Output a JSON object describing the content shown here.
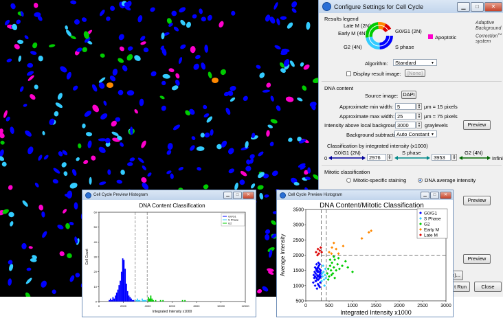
{
  "dialog": {
    "title": "Configure Settings for Cell Cycle",
    "results_legend_label": "Results legend",
    "legend": {
      "late_m": "Late M (2N)",
      "early_m": "Early M (4N)",
      "g0g1": "G0/G1 (2N)",
      "g2": "G2 (4N)",
      "s_phase": "S phase",
      "apoptotic": "Apoptotic"
    },
    "adaptive_text": "Adaptive Background Correction",
    "adaptive_tm": "TM",
    "adaptive_system": "system",
    "algorithm_label": "Algorithm:",
    "algorithm_value": "Standard",
    "display_result_label": "Display result image:",
    "display_result_value": "[None]",
    "dna_content_label": "DNA content",
    "source_image_label": "Source image:",
    "source_image_value": "DAPI",
    "min_width_label": "Approximate min width:",
    "min_width_value": "5",
    "min_width_unit": "μm = 15 pixels",
    "max_width_label": "Approximate max width:",
    "max_width_value": "25",
    "max_width_unit": "μm = 75 pixels",
    "intensity_label": "Intensity above local background:",
    "intensity_value": "3000",
    "intensity_unit": "graylevels",
    "preview_label": "Preview",
    "bg_sub_label": "Background subtraction:",
    "bg_sub_value": "Auto Constant",
    "classification_label": "Classification by integrated intensity (x1000)",
    "class_zero": "0",
    "class_g0g1": "G0/G1 (2N)",
    "class_val1": "2976",
    "class_s": "S phase",
    "class_val2": "3953",
    "class_g2": "G2 (4N)",
    "class_infinity": "Infinity",
    "mitotic_label": "Mitotic classification",
    "mitotic_specific": "Mitotic-specific staining",
    "dna_average": "DNA average intensity",
    "preview2_label": "Preview",
    "preview3_label": "Preview",
    "partial_label": "ile)...",
    "test_run_label": "t Run",
    "close_label": "Close"
  },
  "hist_window": {
    "title": "Cell Cycle Preview Histogram",
    "chart_data": {
      "type": "bar",
      "title": "DNA Content Classification",
      "xlabel": "Integrated Intensity x1000",
      "ylabel": "Cell Count",
      "xlim": [
        0,
        12000
      ],
      "ylim": [
        0,
        60
      ],
      "xticks": [
        0,
        2000,
        4000,
        6000,
        8000,
        10000,
        12000
      ],
      "yticks": [
        0,
        10,
        20,
        30,
        40,
        50,
        60
      ],
      "legend": [
        "G0/G1",
        "S Phase",
        "G2"
      ],
      "thresholds": [
        2976,
        3953
      ],
      "bin_width": 100,
      "series": [
        {
          "name": "G0/G1",
          "x": [
            800,
            900,
            1000,
            1100,
            1200,
            1300,
            1400,
            1500,
            1600,
            1700,
            1800,
            1900,
            2000,
            2100,
            2200,
            2300,
            2400,
            2500,
            2600,
            2700,
            2800
          ],
          "values": [
            1,
            2,
            1,
            3,
            2,
            4,
            6,
            8,
            11,
            14,
            20,
            29,
            28,
            22,
            12,
            7,
            4,
            3,
            2,
            1,
            1
          ]
        },
        {
          "name": "S Phase",
          "x": [
            3000,
            3100,
            3200,
            3300,
            3500,
            3600,
            3700,
            3800
          ],
          "values": [
            1,
            2,
            1,
            1,
            2,
            1,
            1,
            1
          ]
        },
        {
          "name": "G2",
          "x": [
            4000,
            4100,
            4200,
            4300,
            4400,
            4600,
            5000,
            5200,
            6800,
            7000
          ],
          "values": [
            3,
            2,
            4,
            2,
            1,
            1,
            1,
            1,
            1,
            1
          ]
        }
      ]
    }
  },
  "scatter_window": {
    "title": "Cell Cycle Preview Histogram",
    "chart_data": {
      "type": "scatter",
      "title": "DNA Content/Mitotic Classification",
      "xlabel": "Integrated Intensity x1000",
      "ylabel": "Average Intensity",
      "xlim": [
        0,
        3000
      ],
      "ylim": [
        500,
        3500
      ],
      "xticks": [
        0,
        500,
        1000,
        1500,
        2000,
        2500,
        3000
      ],
      "yticks": [
        500,
        1000,
        1500,
        2000,
        2500,
        3000,
        3500
      ],
      "legend": [
        "G0/G1",
        "S Phase",
        "G2",
        "Early M",
        "Late M"
      ],
      "threshold_x": [
        330,
        440
      ],
      "threshold_y": 2000,
      "series": [
        {
          "name": "G0/G1",
          "points": [
            [
              160,
              1100
            ],
            [
              180,
              1250
            ],
            [
              200,
              1300
            ],
            [
              210,
              1400
            ],
            [
              220,
              1150
            ],
            [
              230,
              1500
            ],
            [
              240,
              1350
            ],
            [
              250,
              1200
            ],
            [
              260,
              1600
            ],
            [
              270,
              1450
            ],
            [
              280,
              1300
            ],
            [
              290,
              1550
            ],
            [
              300,
              1250
            ],
            [
              310,
              1400
            ],
            [
              200,
              1000
            ],
            [
              240,
              900
            ],
            [
              260,
              1050
            ],
            [
              280,
              1650
            ],
            [
              300,
              1700
            ],
            [
              320,
              1500
            ],
            [
              170,
              1350
            ],
            [
              230,
              1250
            ],
            [
              250,
              1450
            ],
            [
              270,
              1200
            ],
            [
              290,
              1350
            ],
            [
              310,
              1100
            ],
            [
              220,
              1550
            ],
            [
              260,
              1300
            ],
            [
              300,
              1450
            ],
            [
              190,
              1450
            ],
            [
              210,
              1150
            ],
            [
              230,
              1700
            ],
            [
              280,
              1000
            ],
            [
              320,
              1300
            ],
            [
              240,
              1550
            ],
            [
              270,
              1750
            ],
            [
              300,
              950
            ],
            [
              330,
              1400
            ],
            [
              200,
              1600
            ],
            [
              250,
              1500
            ]
          ]
        },
        {
          "name": "S Phase",
          "points": [
            [
              340,
              1150
            ],
            [
              360,
              1300
            ],
            [
              380,
              1450
            ],
            [
              390,
              1200
            ],
            [
              410,
              1350
            ],
            [
              420,
              1550
            ],
            [
              400,
              1000
            ],
            [
              370,
              1650
            ],
            [
              350,
              1400
            ],
            [
              430,
              1250
            ]
          ]
        },
        {
          "name": "G2",
          "points": [
            [
              460,
              1400
            ],
            [
              480,
              1550
            ],
            [
              500,
              1300
            ],
            [
              520,
              1650
            ],
            [
              540,
              1500
            ],
            [
              560,
              1750
            ],
            [
              580,
              1400
            ],
            [
              600,
              1600
            ],
            [
              620,
              1850
            ],
            [
              650,
              1500
            ],
            [
              680,
              1700
            ],
            [
              720,
              1550
            ],
            [
              780,
              1650
            ],
            [
              850,
              1800
            ],
            [
              900,
              1600
            ],
            [
              1000,
              1450
            ],
            [
              480,
              1200
            ],
            [
              550,
              1350
            ],
            [
              620,
              1250
            ],
            [
              700,
              1900
            ],
            [
              520,
              1850
            ],
            [
              600,
              1950
            ]
          ]
        },
        {
          "name": "Early M",
          "points": [
            [
              500,
              2100
            ],
            [
              560,
              2250
            ],
            [
              600,
              2400
            ],
            [
              650,
              2200
            ],
            [
              700,
              2050
            ],
            [
              1400,
              2800
            ],
            [
              1350,
              2750
            ],
            [
              1200,
              2550
            ],
            [
              800,
              2300
            ],
            [
              550,
              2050
            ]
          ]
        },
        {
          "name": "Late M",
          "points": [
            [
              220,
              2100
            ],
            [
              260,
              2200
            ],
            [
              300,
              2150
            ],
            [
              250,
              2000
            ],
            [
              320,
              2250
            ],
            [
              280,
              2050
            ],
            [
              340,
              2100
            ]
          ]
        }
      ]
    }
  },
  "colors": {
    "g0g1": "#0000ff",
    "s_phase": "#33ccff",
    "g2": "#00cc00",
    "early_m": "#ff8800",
    "late_m": "#dd0000",
    "apoptotic": "#ff00cc"
  }
}
